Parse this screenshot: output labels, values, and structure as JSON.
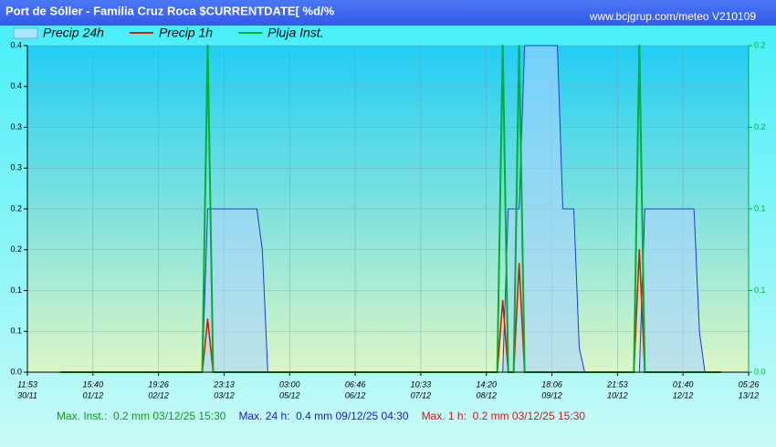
{
  "chart_data": {
    "type": "line",
    "title": "Port de Sóller - Familia Cruz Roca $CURRENTDATE[ %d/%",
    "subtitle": "www.bcjgrup.com/meteo V210109",
    "legend": "top",
    "grid": true,
    "categories": [
      [
        "11:53",
        "30/11"
      ],
      null,
      null,
      null,
      null,
      null,
      null,
      null,
      null,
      null,
      null,
      null,
      [
        "15:40",
        "01/12"
      ],
      null,
      null,
      null,
      null,
      null,
      null,
      null,
      null,
      null,
      null,
      null,
      [
        "19:26",
        "02/12"
      ],
      null,
      null,
      null,
      null,
      null,
      null,
      null,
      null,
      null,
      null,
      null,
      [
        "23:13",
        "03/12"
      ],
      null,
      null,
      null,
      null,
      null,
      null,
      null,
      null,
      null,
      null,
      null,
      [
        "03:00",
        "05/12"
      ],
      null,
      null,
      null,
      null,
      null,
      null,
      null,
      null,
      null,
      null,
      null,
      [
        "06:46",
        "06/12"
      ],
      null,
      null,
      null,
      null,
      null,
      null,
      null,
      null,
      null,
      null,
      null,
      [
        "10:33",
        "07/12"
      ],
      null,
      null,
      null,
      null,
      null,
      null,
      null,
      null,
      null,
      null,
      null,
      [
        "14:20",
        "08/12"
      ],
      null,
      null,
      null,
      null,
      null,
      null,
      null,
      null,
      null,
      null,
      null,
      [
        "18:06",
        "09/12"
      ],
      null,
      null,
      null,
      null,
      null,
      null,
      null,
      null,
      null,
      null,
      null,
      [
        "21:53",
        "10/12"
      ],
      null,
      null,
      null,
      null,
      null,
      null,
      null,
      null,
      null,
      null,
      null,
      [
        "01:40",
        "12/12"
      ],
      null,
      null,
      null,
      null,
      null,
      null,
      null,
      null,
      null,
      null,
      null,
      [
        "05:26",
        "13/12"
      ]
    ],
    "series": [
      {
        "name": "Precip 24h",
        "color": "#1f3ccc",
        "area": true,
        "values": [
          null,
          null,
          null,
          null,
          null,
          null,
          0,
          0,
          0,
          0,
          0,
          0,
          0,
          0,
          0,
          0,
          0,
          0,
          0,
          0,
          0,
          0,
          0,
          0,
          0,
          0,
          0,
          0,
          0,
          0,
          0,
          0,
          0,
          0.2,
          0.2,
          0.2,
          0.2,
          0.2,
          0.2,
          0.2,
          0.2,
          0.2,
          0.2,
          0.15,
          0,
          0,
          0,
          0,
          0,
          0,
          0,
          0,
          0,
          0,
          0,
          0,
          0,
          0,
          0,
          0,
          0,
          0,
          0,
          0,
          0,
          0,
          0,
          0,
          0,
          0,
          0,
          0,
          0,
          0,
          0,
          0,
          0,
          0,
          0,
          0,
          0,
          0,
          0,
          0,
          0,
          0,
          0,
          0,
          0.2,
          0.2,
          0.2,
          0.4,
          0.4,
          0.4,
          0.4,
          0.4,
          0.4,
          0.4,
          0.2,
          0.2,
          0.2,
          0.03,
          0,
          0,
          0,
          0,
          0,
          0,
          0,
          0,
          0,
          0,
          0,
          0.2,
          0.2,
          0.2,
          0.2,
          0.2,
          0.2,
          0.2,
          0.2,
          0.2,
          0.2,
          0.05,
          0,
          0,
          0,
          0,
          null,
          null,
          null,
          null,
          null
        ]
      },
      {
        "name": "Precip 1h",
        "color": "#d42000",
        "values": [
          null,
          null,
          null,
          null,
          null,
          null,
          0,
          0,
          0,
          0,
          0,
          0,
          0,
          0,
          0,
          0,
          0,
          0,
          0,
          0,
          0,
          0,
          0,
          0,
          0,
          0,
          0,
          0,
          0,
          0,
          0,
          0,
          0,
          0.065,
          0,
          0,
          0,
          0,
          0,
          0,
          0,
          0,
          0,
          0,
          0,
          0,
          0,
          0,
          0,
          0,
          0,
          0,
          0,
          0,
          0,
          0,
          0,
          0,
          0,
          0,
          0,
          0,
          0,
          0,
          0,
          0,
          0,
          0,
          0,
          0,
          0,
          0,
          0,
          0,
          0,
          0,
          0,
          0,
          0,
          0,
          0,
          0,
          0,
          0,
          0,
          0,
          0,
          0.088,
          0,
          0,
          0.133,
          0,
          0,
          0,
          0,
          0,
          0,
          0,
          0,
          0,
          0,
          0,
          0,
          0,
          0,
          0,
          0,
          0,
          0,
          0,
          0,
          0,
          0.15,
          0,
          0,
          0,
          0,
          0,
          0,
          0,
          0,
          0,
          0,
          0,
          0,
          0,
          0,
          0,
          null,
          null,
          null,
          null,
          null
        ]
      },
      {
        "name": "Pluja Inst.",
        "color": "#00b030",
        "axis": "y2",
        "values": [
          null,
          null,
          null,
          null,
          null,
          null,
          0,
          0,
          0,
          0,
          0,
          0,
          0,
          0,
          0,
          0,
          0,
          0,
          0,
          0,
          0,
          0,
          0,
          0,
          0,
          0,
          0,
          0,
          0,
          0,
          0,
          0,
          0,
          0.2,
          0,
          0,
          0,
          0,
          0,
          0,
          0,
          0,
          0,
          0,
          0,
          0,
          0,
          0,
          0,
          0,
          0,
          0,
          0,
          0,
          0,
          0,
          0,
          0,
          0,
          0,
          0,
          0,
          0,
          0,
          0,
          0,
          0,
          0,
          0,
          0,
          0,
          0,
          0,
          0,
          0,
          0,
          0,
          0,
          0,
          0,
          0,
          0,
          0,
          0,
          0,
          0,
          0,
          0.2,
          0,
          0,
          0.2,
          0,
          0,
          0,
          0,
          0,
          0,
          0,
          0,
          0,
          0,
          0,
          0,
          0,
          0,
          0,
          0,
          0,
          0,
          0,
          0,
          0,
          0.2,
          0,
          0,
          0,
          0,
          0,
          0,
          0,
          0,
          0,
          0,
          0,
          0,
          0,
          0,
          0,
          null,
          null,
          null,
          null,
          null
        ]
      }
    ],
    "ylim": [
      0,
      0.4
    ],
    "yticks": [
      {
        "value": 0,
        "label": "0.0"
      },
      {
        "value": 0.05,
        "label": "0.1"
      },
      0.1,
      {
        "value": 0.15,
        "label": "0.2"
      },
      0.2,
      {
        "value": 0.25,
        "label": "0.3"
      },
      0.3,
      {
        "value": 0.35,
        "label": "0.4"
      },
      0.4
    ],
    "y2lim": [
      0,
      0.2
    ],
    "y2ticks": [
      {
        "value": 0,
        "label": "0.0"
      },
      {
        "value": 0.05,
        "label": "0.1"
      },
      0.1,
      {
        "value": 0.15,
        "label": "0.2"
      },
      0.2
    ],
    "annotations": [
      {
        "text": "Max. Inst.:  0.2 mm 03/12/25 15:30",
        "color": "#119a11"
      },
      {
        "text": "Max. 24 h:  0.4 mm 09/12/25 04:30",
        "color": "#1a1acc"
      },
      {
        "text": "Max. 1 h:  0.2 mm 03/12/25 15:30",
        "color": "#cc1a1a"
      }
    ]
  }
}
